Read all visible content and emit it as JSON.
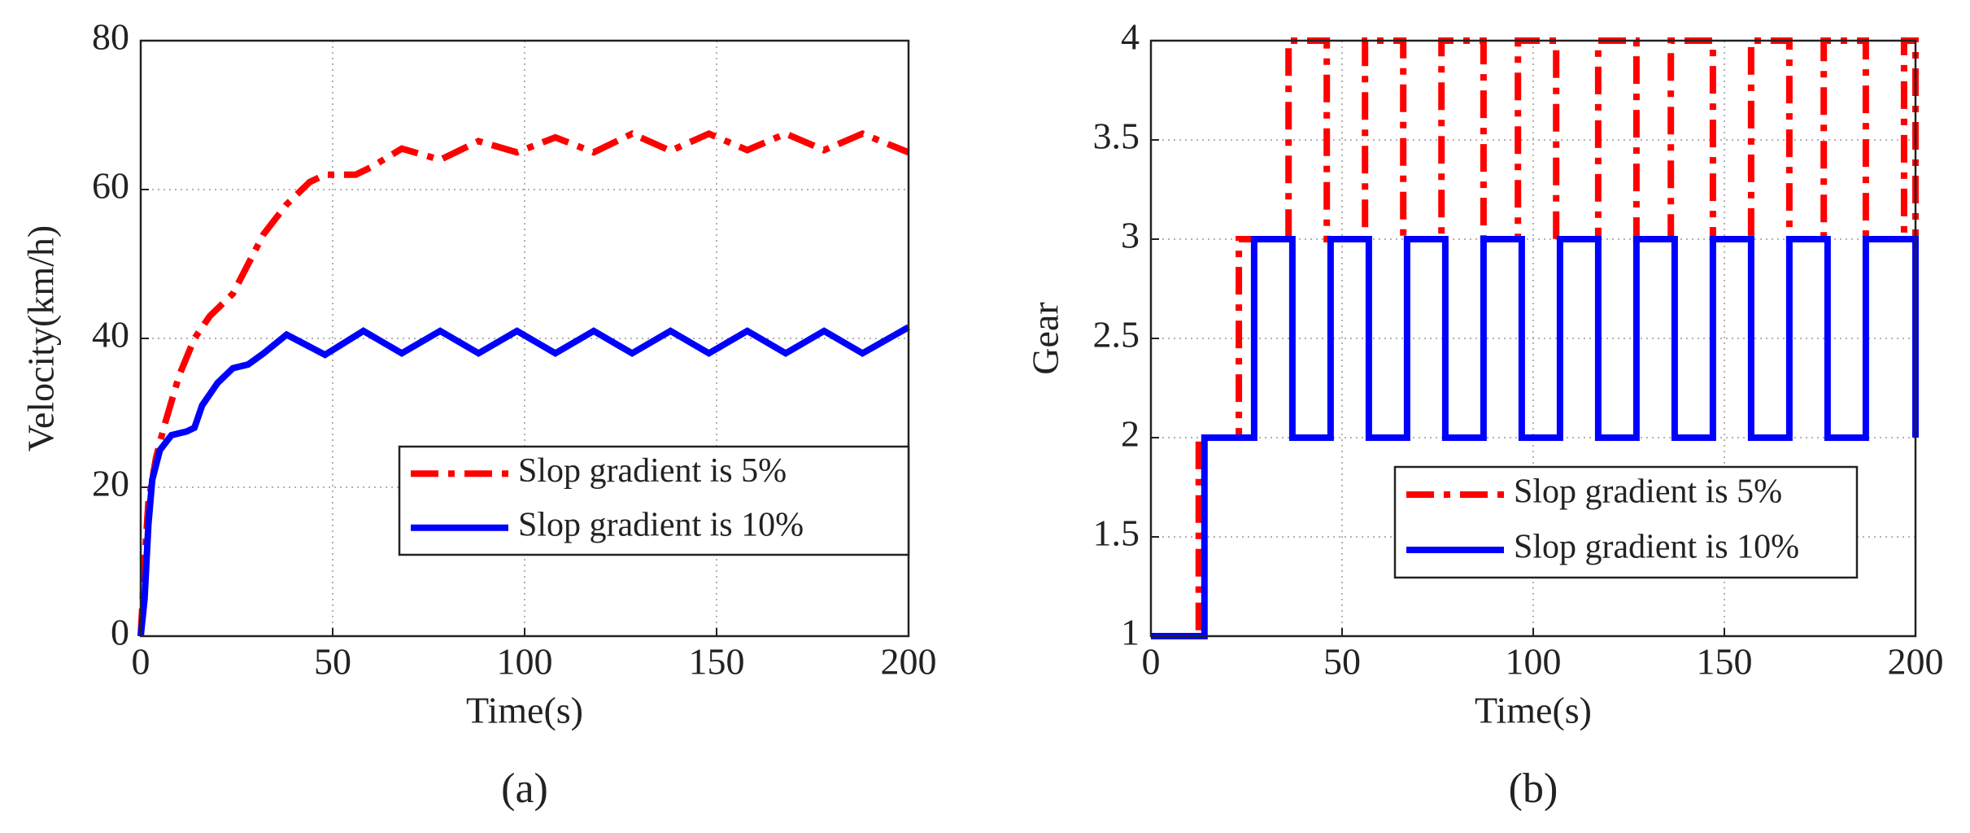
{
  "chart_data": [
    {
      "type": "line",
      "caption": "(a)",
      "xlabel": "Time(s)",
      "ylabel": "Velocity(km/h)",
      "xlim": [
        0,
        200
      ],
      "xticks": [
        0,
        50,
        100,
        150,
        200
      ],
      "ylim": [
        0,
        80
      ],
      "yticks": [
        0,
        20,
        40,
        60,
        80
      ],
      "grid": true,
      "series": [
        {
          "name": "Slop gradient is 5%",
          "color": "#ff0000",
          "style": "dashdot",
          "x": [
            0,
            1,
            2,
            4,
            6,
            10,
            14,
            18,
            22,
            24,
            28,
            32,
            38,
            44,
            48,
            56,
            60,
            68,
            78,
            88,
            98,
            108,
            118,
            128,
            138,
            148,
            158,
            168,
            178,
            188,
            200
          ],
          "values": [
            0,
            10,
            18,
            24,
            28,
            35,
            40,
            43,
            45,
            46,
            50,
            54,
            58,
            61,
            62,
            62,
            63,
            65.5,
            64,
            66.5,
            65,
            67,
            65,
            67.5,
            65.2,
            67.5,
            65.3,
            67.5,
            65.3,
            67.5,
            65
          ]
        },
        {
          "name": "Slop gradient is 10%",
          "color": "#0000ff",
          "style": "solid",
          "x": [
            0,
            1,
            2,
            3,
            5,
            8,
            12,
            14,
            16,
            20,
            24,
            28,
            32,
            38,
            48,
            58,
            68,
            78,
            88,
            98,
            108,
            118,
            128,
            138,
            148,
            158,
            168,
            178,
            188,
            200
          ],
          "values": [
            0,
            5,
            15,
            21,
            25,
            27,
            27.5,
            28,
            31,
            34,
            36,
            36.5,
            38,
            40.5,
            37.8,
            41,
            38,
            41,
            38,
            41,
            38,
            41,
            38,
            41,
            38,
            41,
            38,
            41,
            38,
            41.5
          ]
        }
      ]
    },
    {
      "type": "line",
      "caption": "(b)",
      "xlabel": "Time(s)",
      "ylabel": "Gear",
      "xlim": [
        0,
        200
      ],
      "xticks": [
        0,
        50,
        100,
        150,
        200
      ],
      "ylim": [
        1,
        4
      ],
      "yticks": [
        1,
        1.5,
        2,
        2.5,
        3,
        3.5,
        4
      ],
      "grid": true,
      "series": [
        {
          "name": "Slop gradient is 5%",
          "color": "#ff0000",
          "style": "dashdot",
          "x": [
            0,
            12.5,
            12.5,
            23,
            23,
            36,
            36,
            46,
            46,
            56,
            56,
            66,
            66,
            76,
            76,
            87,
            87,
            96,
            96,
            106,
            106,
            117,
            117,
            127,
            127,
            136,
            136,
            147,
            147,
            157,
            157,
            167,
            167,
            176,
            176,
            187,
            187,
            197,
            197,
            200,
            200
          ],
          "values": [
            1,
            1,
            2,
            2,
            3,
            3,
            4,
            4,
            3,
            3,
            4,
            4,
            3,
            3,
            4,
            4,
            3,
            3,
            4,
            4,
            3,
            3,
            4,
            4,
            3,
            3,
            4,
            4,
            3,
            3,
            4,
            4,
            3,
            3,
            4,
            4,
            3,
            3,
            4,
            4,
            3
          ]
        },
        {
          "name": "Slop gradient is 10%",
          "color": "#0000ff",
          "style": "solid",
          "x": [
            0,
            14,
            14,
            27,
            27,
            37,
            37,
            47,
            47,
            57,
            57,
            67,
            67,
            77,
            77,
            87,
            87,
            97,
            97,
            107,
            107,
            117,
            117,
            127,
            127,
            137,
            137,
            147,
            147,
            157,
            157,
            167,
            167,
            177,
            177,
            187,
            187,
            200,
            200
          ],
          "values": [
            1,
            1,
            2,
            2,
            3,
            3,
            2,
            2,
            3,
            3,
            2,
            2,
            3,
            3,
            2,
            2,
            3,
            3,
            2,
            2,
            3,
            3,
            2,
            2,
            3,
            3,
            2,
            2,
            3,
            3,
            2,
            2,
            3,
            3,
            2,
            2,
            3,
            3,
            2
          ]
        }
      ]
    }
  ]
}
